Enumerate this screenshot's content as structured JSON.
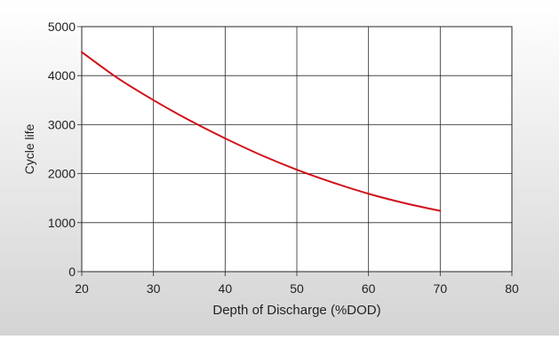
{
  "chart_data": {
    "type": "line",
    "title": "",
    "xlabel": "Depth of Discharge (%DOD)",
    "ylabel": "Cycle life",
    "xlim": [
      20,
      80
    ],
    "ylim": [
      0,
      5000
    ],
    "xticks": [
      "20",
      "30",
      "40",
      "50",
      "60",
      "70",
      "80"
    ],
    "yticks": [
      "0",
      "1000",
      "2000",
      "3000",
      "4000",
      "5000"
    ],
    "grid": true,
    "legend": "none",
    "series": [
      {
        "color": "#d0101a",
        "x": [
          20,
          25,
          30,
          35,
          40,
          45,
          50,
          55,
          60,
          65,
          70
        ],
        "y": [
          4480,
          3950,
          3500,
          3090,
          2720,
          2380,
          2080,
          1820,
          1590,
          1400,
          1240
        ]
      }
    ]
  },
  "colors": {
    "background_gradient_start": "#ffffff",
    "background_gradient_end": "#d4d4d4",
    "plot_area": "#ffffff",
    "gridline": "#2a2a2a",
    "axis": "#222222"
  }
}
